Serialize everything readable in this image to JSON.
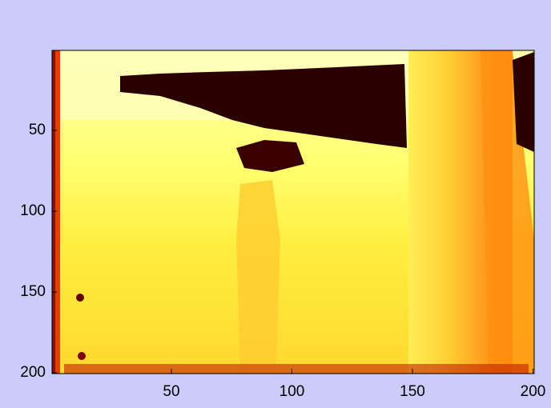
{
  "chart_data": {
    "type": "image",
    "xlim": [
      0.5,
      200.5
    ],
    "ylim": [
      0.5,
      200.5
    ],
    "y_reversed": true,
    "xticks": [
      50,
      100,
      150,
      200
    ],
    "yticks": [
      50,
      100,
      150,
      200
    ]
  }
}
